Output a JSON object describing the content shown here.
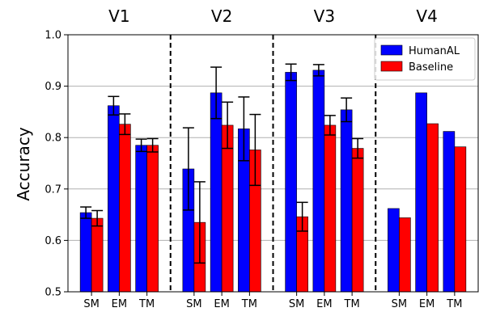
{
  "chart_data": {
    "type": "bar",
    "ylabel": "Accuracy",
    "ylim": [
      0.5,
      1.0
    ],
    "yticks": [
      "0.5",
      "0.6",
      "0.7",
      "0.8",
      "0.9",
      "1.0"
    ],
    "grid": "horizontal",
    "legend_position": "top-right",
    "groups": [
      {
        "title": "V1",
        "categories": [
          "SM",
          "EM",
          "TM"
        ]
      },
      {
        "title": "V2",
        "categories": [
          "SM",
          "EM",
          "TM"
        ]
      },
      {
        "title": "V3",
        "categories": [
          "SM",
          "EM",
          "TM"
        ]
      },
      {
        "title": "V4",
        "categories": [
          "SM",
          "EM",
          "TM"
        ]
      }
    ],
    "series": [
      {
        "name": "HumanAL",
        "color": "#0000ff",
        "values": [
          0.654,
          0.862,
          0.785,
          0.739,
          0.887,
          0.817,
          0.927,
          0.931,
          0.854,
          0.662,
          0.887,
          0.812
        ],
        "errors": [
          0.011,
          0.018,
          0.012,
          0.08,
          0.05,
          0.062,
          0.016,
          0.011,
          0.023,
          0,
          0,
          0
        ]
      },
      {
        "name": "Baseline",
        "color": "#ff0000",
        "values": [
          0.643,
          0.826,
          0.785,
          0.635,
          0.824,
          0.776,
          0.646,
          0.824,
          0.779,
          0.644,
          0.827,
          0.782
        ],
        "errors": [
          0.015,
          0.02,
          0.013,
          0.079,
          0.045,
          0.069,
          0.028,
          0.019,
          0.019,
          0,
          0,
          0
        ]
      }
    ]
  }
}
